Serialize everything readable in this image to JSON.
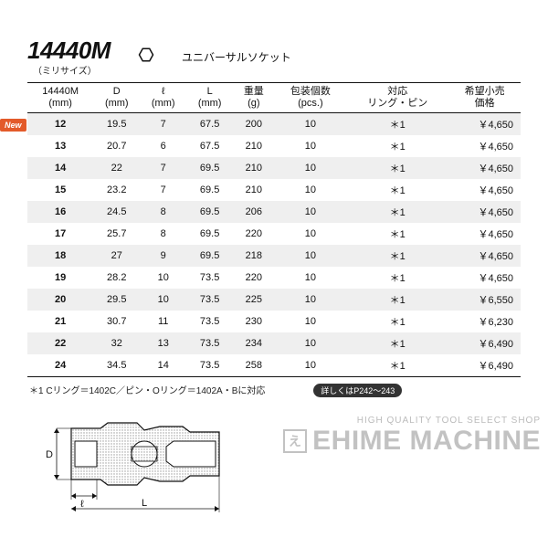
{
  "header": {
    "model": "14440M",
    "subtitle": "（ミリサイズ）",
    "product_name": "ユニバーサルソケット"
  },
  "new_badge": "New",
  "table": {
    "columns": [
      {
        "line1": "14440M",
        "line2": "(mm)"
      },
      {
        "line1": "D",
        "line2": "(mm)"
      },
      {
        "line1": "ℓ",
        "line2": "(mm)"
      },
      {
        "line1": "L",
        "line2": "(mm)"
      },
      {
        "line1": "重量",
        "line2": "(g)"
      },
      {
        "line1": "包装個数",
        "line2": "(pcs.)"
      },
      {
        "line1": "対応",
        "line2": "リング・ピン"
      },
      {
        "line1": "希望小売",
        "line2": "価格"
      }
    ],
    "rows": [
      {
        "shade": true,
        "size": "12",
        "D": "19.5",
        "l": "7",
        "L": "67.5",
        "weight": "200",
        "pack": "10",
        "ring": "＊1",
        "price": "￥4,650"
      },
      {
        "shade": false,
        "size": "13",
        "D": "20.7",
        "l": "6",
        "L": "67.5",
        "weight": "210",
        "pack": "10",
        "ring": "＊1",
        "price": "￥4,650"
      },
      {
        "shade": true,
        "size": "14",
        "D": "22",
        "l": "7",
        "L": "69.5",
        "weight": "210",
        "pack": "10",
        "ring": "＊1",
        "price": "￥4,650"
      },
      {
        "shade": false,
        "size": "15",
        "D": "23.2",
        "l": "7",
        "L": "69.5",
        "weight": "210",
        "pack": "10",
        "ring": "＊1",
        "price": "￥4,650"
      },
      {
        "shade": true,
        "size": "16",
        "D": "24.5",
        "l": "8",
        "L": "69.5",
        "weight": "206",
        "pack": "10",
        "ring": "＊1",
        "price": "￥4,650"
      },
      {
        "shade": false,
        "size": "17",
        "D": "25.7",
        "l": "8",
        "L": "69.5",
        "weight": "220",
        "pack": "10",
        "ring": "＊1",
        "price": "￥4,650"
      },
      {
        "shade": true,
        "size": "18",
        "D": "27",
        "l": "9",
        "L": "69.5",
        "weight": "218",
        "pack": "10",
        "ring": "＊1",
        "price": "￥4,650"
      },
      {
        "shade": false,
        "size": "19",
        "D": "28.2",
        "l": "10",
        "L": "73.5",
        "weight": "220",
        "pack": "10",
        "ring": "＊1",
        "price": "￥4,650"
      },
      {
        "shade": true,
        "size": "20",
        "D": "29.5",
        "l": "10",
        "L": "73.5",
        "weight": "225",
        "pack": "10",
        "ring": "＊1",
        "price": "￥6,550"
      },
      {
        "shade": false,
        "size": "21",
        "D": "30.7",
        "l": "11",
        "L": "73.5",
        "weight": "230",
        "pack": "10",
        "ring": "＊1",
        "price": "￥6,230"
      },
      {
        "shade": true,
        "size": "22",
        "D": "32",
        "l": "13",
        "L": "73.5",
        "weight": "234",
        "pack": "10",
        "ring": "＊1",
        "price": "￥6,490"
      },
      {
        "shade": false,
        "size": "24",
        "D": "34.5",
        "l": "14",
        "L": "73.5",
        "weight": "258",
        "pack": "10",
        "ring": "＊1",
        "price": "￥6,490"
      }
    ]
  },
  "footnote": {
    "text": "＊1 Cリング＝1402C／ピン・Oリング＝1402A・Bに対応",
    "detail": "詳しくはP242～243"
  },
  "diagram": {
    "labels": {
      "D": "D",
      "l": "ℓ",
      "L": "L"
    },
    "stroke": "#111111",
    "halftone": "#b8b8b8"
  },
  "watermark": {
    "tagline": "HIGH QUALITY TOOL SELECT SHOP",
    "brand": "EHIME MACHINE",
    "glyph": "え"
  },
  "colors": {
    "row_shade": "#efefef",
    "text": "#111111",
    "badge_bg": "#e35a2a"
  }
}
